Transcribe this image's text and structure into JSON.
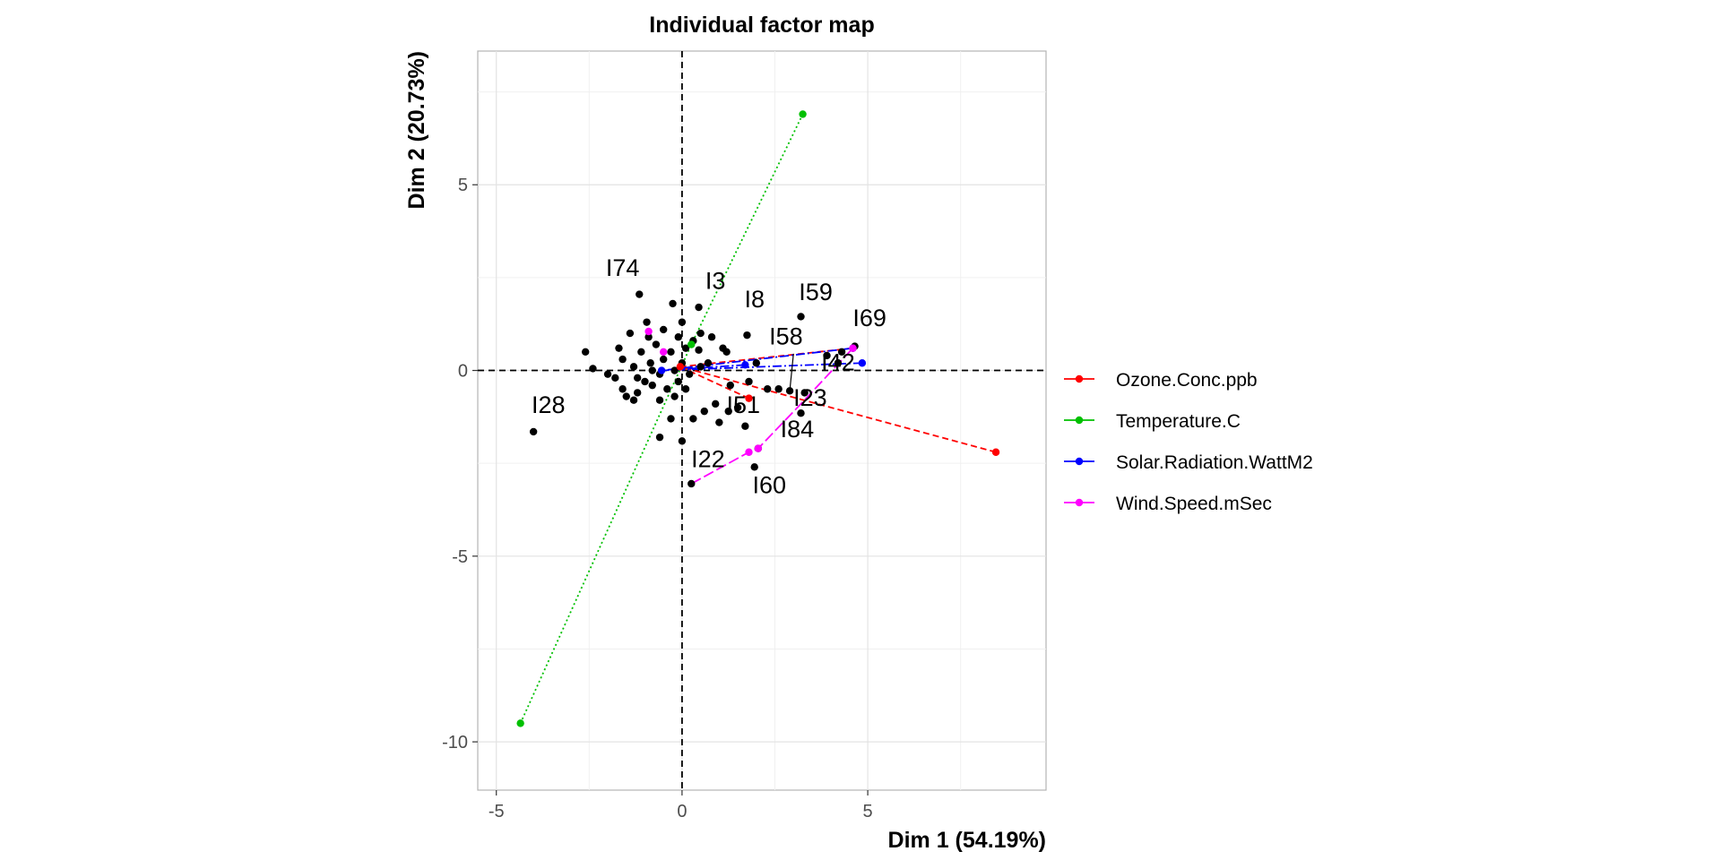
{
  "chart_data": {
    "type": "scatter",
    "title": "Individual factor map",
    "xlabel": "Dim 1 (54.19%)",
    "ylabel": "Dim 2 (20.73%)",
    "xlim": [
      -5.5,
      9.8
    ],
    "ylim": [
      -11.3,
      8.6
    ],
    "x_ticks": [
      -5,
      0,
      5
    ],
    "y_ticks": [
      -10,
      -5,
      0,
      5
    ],
    "grid": true,
    "legend_position": "right",
    "reference_lines": {
      "x": 0,
      "y": 0,
      "style": "dashed"
    },
    "individuals": [
      [
        -2.6,
        0.5
      ],
      [
        -2.4,
        0.05
      ],
      [
        -2.0,
        -0.1
      ],
      [
        -1.8,
        -0.2
      ],
      [
        -1.7,
        0.6
      ],
      [
        -1.6,
        0.3
      ],
      [
        -1.6,
        -0.5
      ],
      [
        -1.5,
        -0.7
      ],
      [
        -1.4,
        1.0
      ],
      [
        -1.3,
        0.1
      ],
      [
        -1.3,
        -0.8
      ],
      [
        -1.2,
        -0.6
      ],
      [
        -1.1,
        0.5
      ],
      [
        -1.0,
        -0.3
      ],
      [
        -0.95,
        1.3
      ],
      [
        -0.9,
        0.9
      ],
      [
        -0.85,
        0.2
      ],
      [
        -0.8,
        -0.4
      ],
      [
        -0.7,
        0.7
      ],
      [
        -0.6,
        -0.1
      ],
      [
        -0.6,
        -0.8
      ],
      [
        -0.5,
        0.3
      ],
      [
        -0.5,
        1.1
      ],
      [
        -0.4,
        -0.5
      ],
      [
        -0.3,
        0.5
      ],
      [
        -0.3,
        -1.3
      ],
      [
        -0.25,
        1.8
      ],
      [
        -0.2,
        0.0
      ],
      [
        -0.2,
        -0.7
      ],
      [
        -0.1,
        0.9
      ],
      [
        -0.1,
        -0.3
      ],
      [
        0.0,
        0.2
      ],
      [
        0.0,
        1.3
      ],
      [
        0.1,
        0.6
      ],
      [
        0.1,
        -0.5
      ],
      [
        0.2,
        -0.1
      ],
      [
        0.3,
        0.8
      ],
      [
        0.3,
        -1.3
      ],
      [
        0.45,
        0.55
      ],
      [
        0.5,
        1.0
      ],
      [
        0.6,
        -1.1
      ],
      [
        0.7,
        0.2
      ],
      [
        0.8,
        0.9
      ],
      [
        0.9,
        -0.9
      ],
      [
        1.0,
        -1.4
      ],
      [
        1.1,
        0.6
      ],
      [
        1.2,
        0.5
      ],
      [
        1.3,
        -0.4
      ],
      [
        1.5,
        -1.0
      ],
      [
        1.7,
        -1.5
      ],
      [
        1.8,
        -0.3
      ],
      [
        2.0,
        0.2
      ],
      [
        2.3,
        -0.5
      ],
      [
        2.6,
        -0.5
      ],
      [
        3.3,
        -0.6
      ],
      [
        3.9,
        0.4
      ],
      [
        4.3,
        0.5
      ],
      [
        -0.6,
        -1.8
      ],
      [
        0.0,
        -1.9
      ],
      [
        -0.8,
        0.0
      ],
      [
        -1.2,
        -0.2
      ],
      [
        0.5,
        0.1
      ]
    ],
    "labeled_points": [
      {
        "label": "I74",
        "x": -1.15,
        "y": 2.05,
        "lx": -1.6,
        "ly": 2.55
      },
      {
        "label": "I3",
        "x": 0.45,
        "y": 1.7,
        "lx": 0.9,
        "ly": 2.2
      },
      {
        "label": "I8",
        "x": 1.75,
        "y": 0.95,
        "lx": 1.95,
        "ly": 1.7
      },
      {
        "label": "I59",
        "x": 3.2,
        "y": 1.45,
        "lx": 3.6,
        "ly": 1.9
      },
      {
        "label": "I69",
        "x": 4.65,
        "y": 0.65,
        "lx": 5.05,
        "ly": 1.2
      },
      {
        "label": "I58",
        "x": 2.9,
        "y": -0.55,
        "lx": 2.8,
        "ly": 0.7
      },
      {
        "label": "I42",
        "x": 4.2,
        "y": 0.2,
        "lx": 4.2,
        "ly": 0.0
      },
      {
        "label": "I23",
        "x": 3.2,
        "y": -1.15,
        "lx": 3.45,
        "ly": -0.95
      },
      {
        "label": "I51",
        "x": 1.25,
        "y": -1.1,
        "lx": 1.65,
        "ly": -1.15
      },
      {
        "label": "I84",
        "x": 2.05,
        "y": -2.1,
        "lx": 3.1,
        "ly": -1.8
      },
      {
        "label": "I28",
        "x": -4.0,
        "y": -1.65,
        "lx": -3.6,
        "ly": -1.15
      },
      {
        "label": "I22",
        "x": 0.25,
        "y": -3.05,
        "lx": 0.7,
        "ly": -2.6
      },
      {
        "label": "I60",
        "x": 1.95,
        "y": -2.6,
        "lx": 2.35,
        "ly": -3.3
      }
    ],
    "series": [
      {
        "name": "Ozone.Conc.ppb",
        "color": "#ff0000",
        "dash": "7,4",
        "mean": [
          -0.05,
          0.1
        ],
        "partial": [
          [
            4.6,
            0.6
          ],
          [
            1.8,
            -0.75
          ],
          [
            8.45,
            -2.2
          ]
        ]
      },
      {
        "name": "Temperature.C",
        "color": "#00c000",
        "dash": "2,3",
        "mean": [
          0.25,
          0.7
        ],
        "partial": [
          [
            3.25,
            6.9
          ],
          [
            -4.35,
            -9.5
          ]
        ]
      },
      {
        "name": "Solar.Radiation.WattM2",
        "color": "#0000ff",
        "dash": "10,3,2,3",
        "mean": [
          -0.55,
          0.0
        ],
        "partial": [
          [
            4.6,
            0.6
          ],
          [
            4.85,
            0.2
          ],
          [
            1.7,
            0.15
          ]
        ]
      },
      {
        "name": "Wind.Speed.mSec",
        "color": "#ff00ff",
        "dash": "12,4",
        "mean": [
          -0.5,
          0.5
        ],
        "partial": [
          [
            -0.9,
            1.05
          ],
          [
            2.05,
            -2.1
          ],
          [
            1.8,
            -2.2
          ],
          [
            4.6,
            0.6
          ]
        ]
      }
    ],
    "wind_path": [
      [
        0.25,
        -3.05
      ],
      [
        1.8,
        -2.2
      ],
      [
        2.05,
        -2.1
      ],
      [
        3.2,
        -0.9
      ],
      [
        4.6,
        0.6
      ]
    ]
  }
}
